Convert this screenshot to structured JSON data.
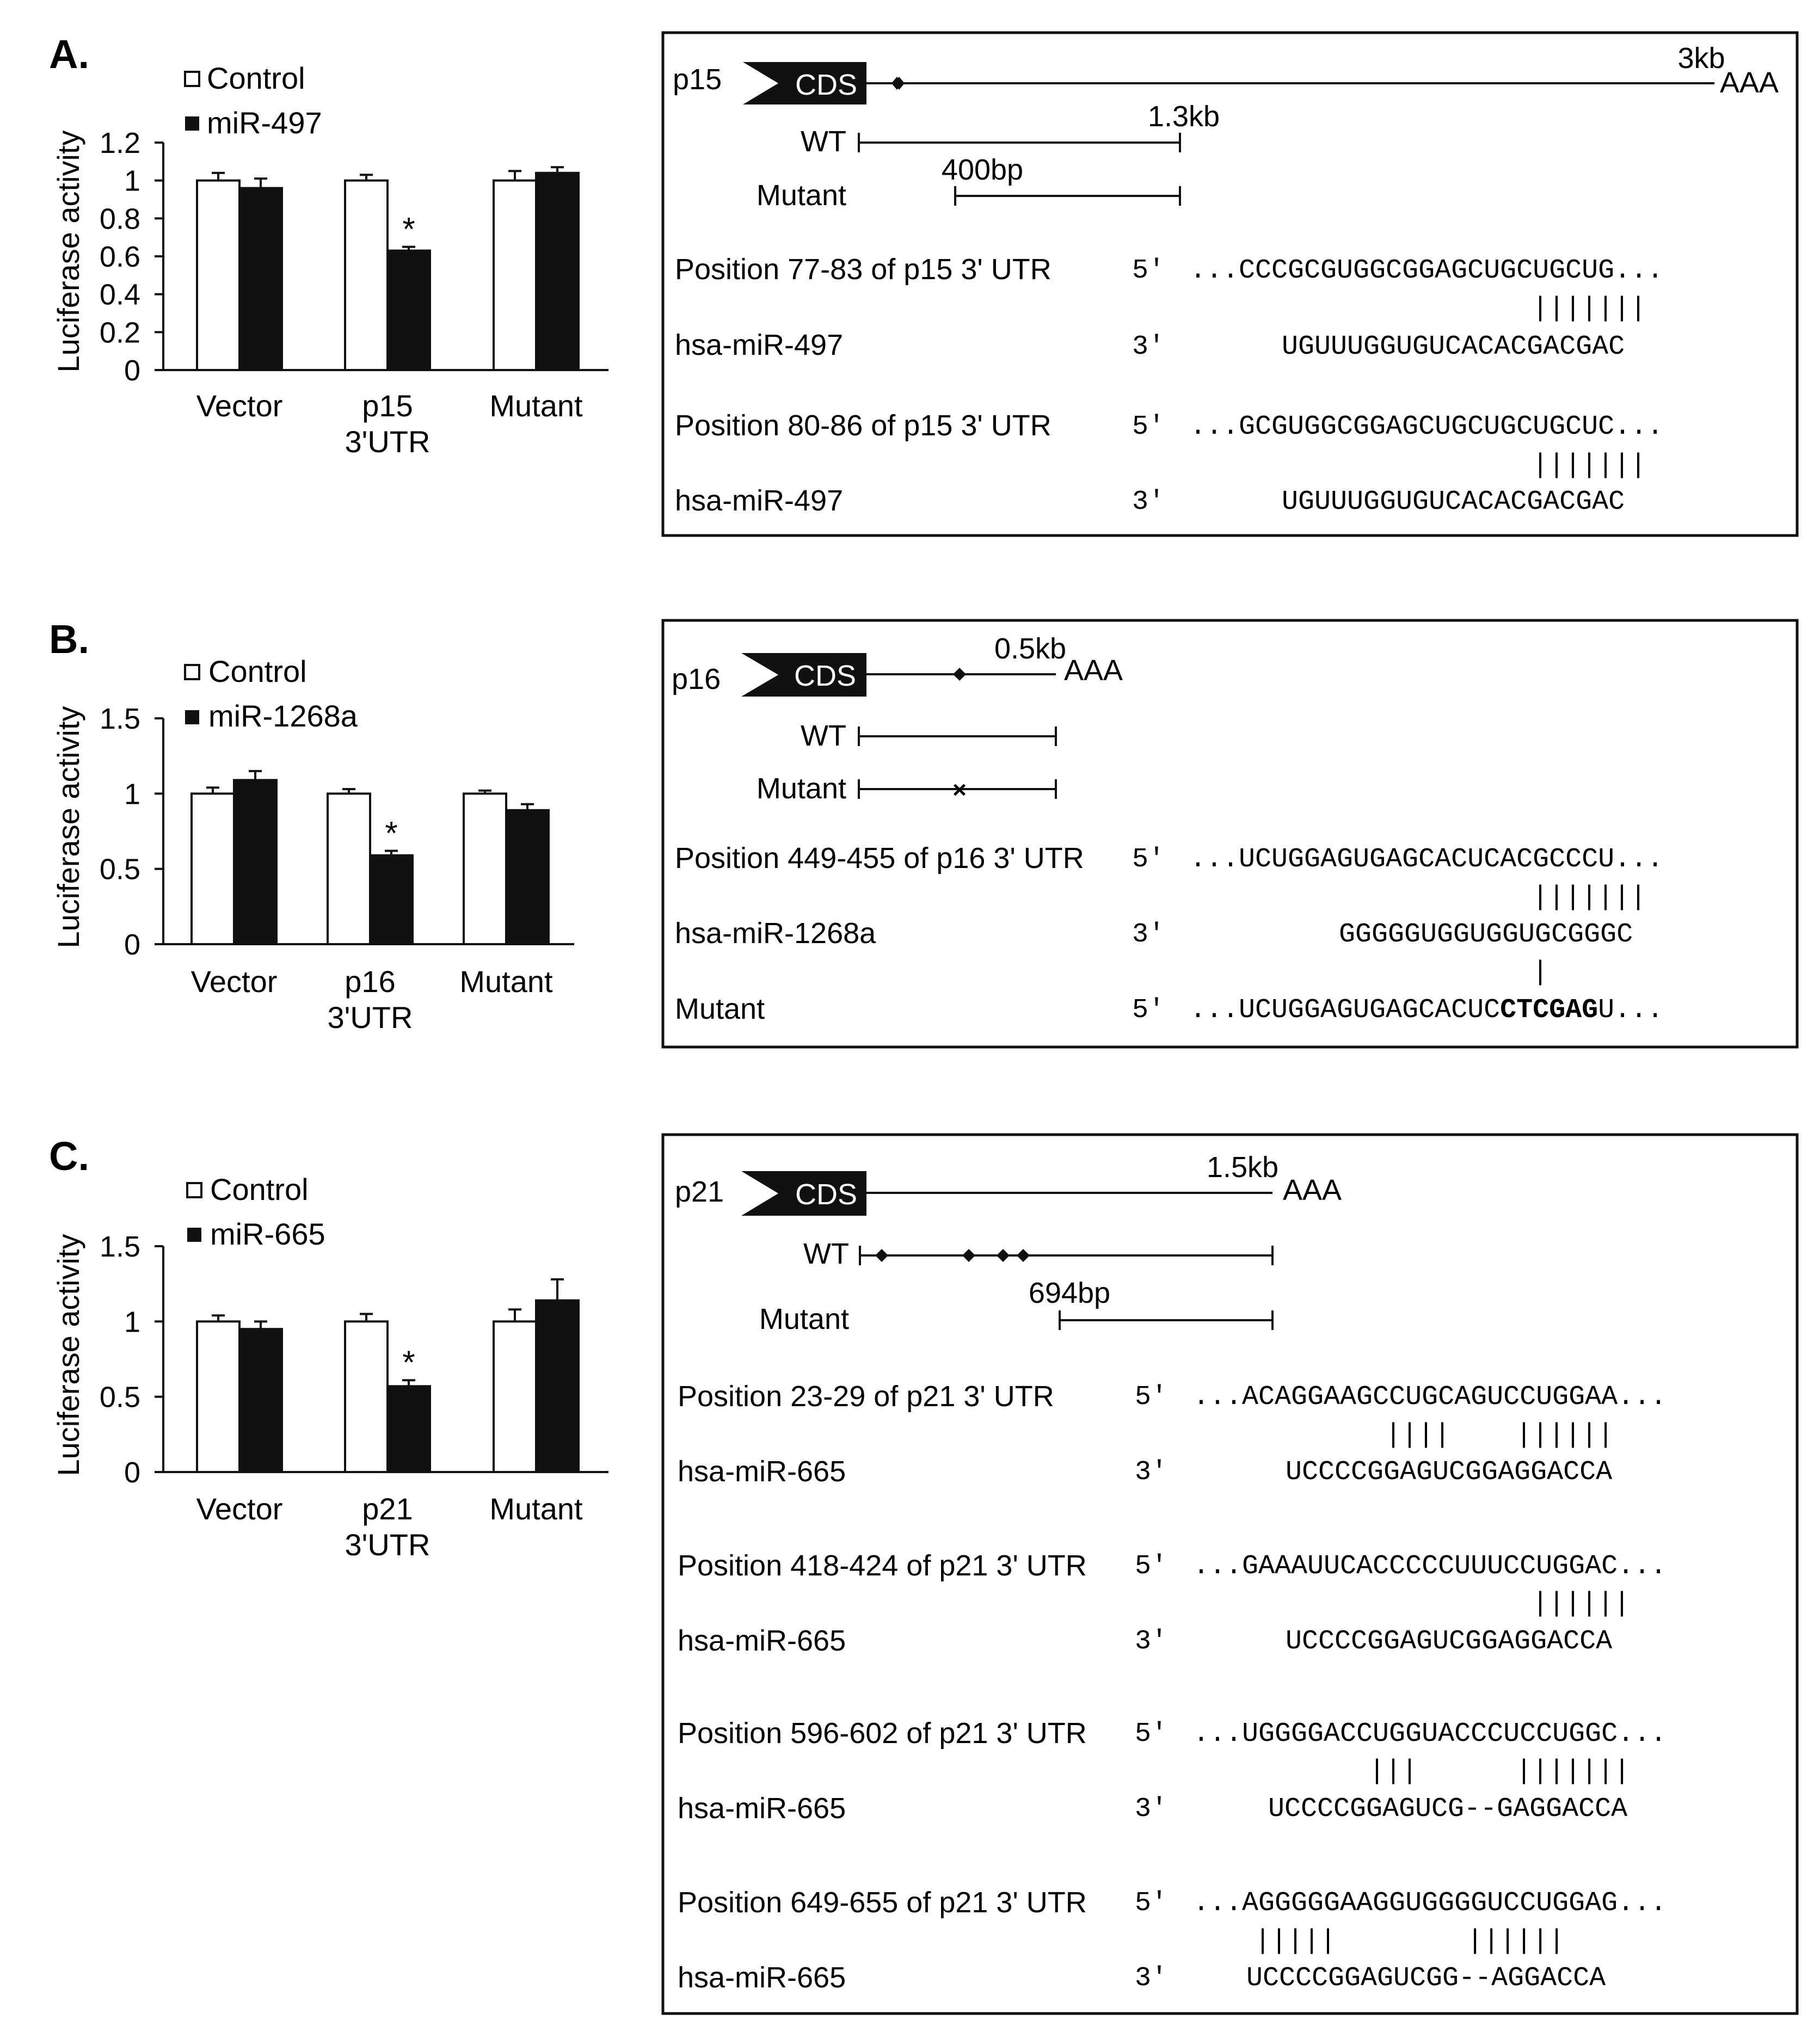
{
  "colors": {
    "ink": "#111111",
    "control_fill": "#ffffff",
    "mir_fill": "#111111",
    "cds_fill": "#111111",
    "cds_text": "#ffffff"
  },
  "panels": [
    {
      "label": "A.",
      "chart_data": {
        "type": "bar",
        "ylabel": "Luciferase activity",
        "ylim": [
          0,
          1.2
        ],
        "yticks": [
          "0",
          "0.2",
          "0.4",
          "0.6",
          "0.8",
          "1",
          "1.2"
        ],
        "categories": [
          "Vector",
          "p15 3'UTR",
          "Mutant"
        ],
        "category_lines": [
          [
            "Vector"
          ],
          [
            "p15",
            "3'UTR"
          ],
          [
            "Mutant"
          ]
        ],
        "series": [
          {
            "name": "Control",
            "values": [
              1.0,
              1.0,
              1.0
            ],
            "errors": [
              0.04,
              0.03,
              0.05
            ]
          },
          {
            "name": "miR-497",
            "values": [
              0.96,
              0.63,
              1.04
            ],
            "errors": [
              0.05,
              0.02,
              0.03
            ]
          }
        ],
        "significance": [
          {
            "category": 1,
            "series": 1,
            "mark": "*"
          }
        ]
      },
      "diagram": {
        "gene": "p15",
        "cds": "CDS",
        "length": "3kb",
        "polya": "AAA",
        "wt_label": "WT",
        "wt_length": "1.3kb",
        "mutant_label": "Mutant",
        "mutant_length": "400bp",
        "alignments": [
          {
            "label": "Position 77-83 of p15 3' UTR",
            "end5": "5'",
            "seq": "...CCCGCGUGGCGGAGCUGCUGCUG...",
            "match": "|||||||",
            "mir_label": "hsa-miR-497",
            "end3": "3'",
            "mir_seq": "UGUUUGGUGUCACACGACGAC"
          },
          {
            "label": "Position 80-86 of p15 3' UTR",
            "end5": "5'",
            "seq": "...GCGUGGCGGAGCUGCUGCUGCUC...",
            "match": "|||||||",
            "mir_label": "hsa-miR-497",
            "end3": "3'",
            "mir_seq": "UGUUUGGUGUCACACGACGAC"
          }
        ]
      }
    },
    {
      "label": "B.",
      "chart_data": {
        "type": "bar",
        "ylabel": "Luciferase activity",
        "ylim": [
          0,
          1.5
        ],
        "yticks": [
          "0",
          "0.5",
          "1",
          "1.5"
        ],
        "categories": [
          "Vector",
          "p16 3'UTR",
          "Mutant"
        ],
        "category_lines": [
          [
            "Vector"
          ],
          [
            "p16",
            "3'UTR"
          ],
          [
            "Mutant"
          ]
        ],
        "series": [
          {
            "name": "Control",
            "values": [
              1.0,
              1.0,
              1.0
            ],
            "errors": [
              0.04,
              0.03,
              0.02
            ]
          },
          {
            "name": "miR-1268a",
            "values": [
              1.09,
              0.59,
              0.89
            ],
            "errors": [
              0.06,
              0.03,
              0.04
            ]
          }
        ],
        "significance": [
          {
            "category": 1,
            "series": 1,
            "mark": "*"
          }
        ]
      },
      "diagram": {
        "gene": "p16",
        "cds": "CDS",
        "length": "0.5kb",
        "polya": "AAA",
        "wt_label": "WT",
        "mutant_label": "Mutant",
        "mutant_mark": "×",
        "alignment": {
          "label": "Position 449-455 of p16 3' UTR",
          "end5": "5'",
          "seq": "...UCUGGAGUGAGCACUCACGCCCU...",
          "match": "|||||||",
          "mir_label": "hsa-miR-1268a",
          "end3": "3'",
          "mir_seq": "GGGGGUGGUGGUGCGGGC",
          "match2": "|",
          "mutant_label": "Mutant",
          "mutant_end5": "5'",
          "mutant_pre": "...UCUGGAGUGAGCACUC",
          "mutant_bold": "CTCGAG",
          "mutant_post": "U..."
        }
      }
    },
    {
      "label": "C.",
      "chart_data": {
        "type": "bar",
        "ylabel": "Luciferase activity",
        "ylim": [
          0,
          1.5
        ],
        "yticks": [
          "0",
          "0.5",
          "1",
          "1.5"
        ],
        "categories": [
          "Vector",
          "p21 3'UTR",
          "Mutant"
        ],
        "category_lines": [
          [
            "Vector"
          ],
          [
            "p21",
            "3'UTR"
          ],
          [
            "Mutant"
          ]
        ],
        "series": [
          {
            "name": "Control",
            "values": [
              1.0,
              1.0,
              1.0
            ],
            "errors": [
              0.04,
              0.05,
              0.08
            ]
          },
          {
            "name": "miR-665",
            "values": [
              0.95,
              0.57,
              1.14
            ],
            "errors": [
              0.05,
              0.04,
              0.14
            ]
          }
        ],
        "significance": [
          {
            "category": 1,
            "series": 1,
            "mark": "*"
          }
        ]
      },
      "diagram": {
        "gene": "p21",
        "cds": "CDS",
        "length": "1.5kb",
        "polya": "AAA",
        "wt_label": "WT",
        "mutant_label": "Mutant",
        "mutant_length": "694bp",
        "alignments": [
          {
            "label": "Position 23-29 of p21 3' UTR",
            "end5": "5'",
            "seq": "...ACAGGAAGCCUGCAGUCCUGGAA...",
            "match": "||||    ||||||",
            "mir_label": "hsa-miR-665",
            "end3": "3'",
            "mir_seq": "UCCCCGGAGUCGGAGGACCA"
          },
          {
            "label": "Position 418-424 of p21 3' UTR",
            "end5": "5'",
            "seq": "...GAAAUUCACCCCCUUUCCUGGAC...",
            "match": "||||||",
            "mir_label": "hsa-miR-665",
            "end3": "3'",
            "mir_seq": "UCCCCGGAGUCGGAGGACCA"
          },
          {
            "label": "Position 596-602 of p21 3' UTR",
            "end5": "5'",
            "seq": "...UGGGGACCUGGUACCCUCCUGGC...",
            "match": "|||      |||||||",
            "mir_label": "hsa-miR-665",
            "end3": "3'",
            "mir_seq": "UCCCCGGAGUCG--GAGGACCA"
          },
          {
            "label": "Position 649-655 of p21 3' UTR",
            "end5": "5'",
            "seq": "...AGGGGGAAGGUGGGGUCCUGGAG...",
            "match": "|||||        ||||||",
            "mir_label": "hsa-miR-665",
            "end3": "3'",
            "mir_seq": "UCCCCGGAGUCGG--AGGACCA"
          }
        ]
      }
    }
  ]
}
